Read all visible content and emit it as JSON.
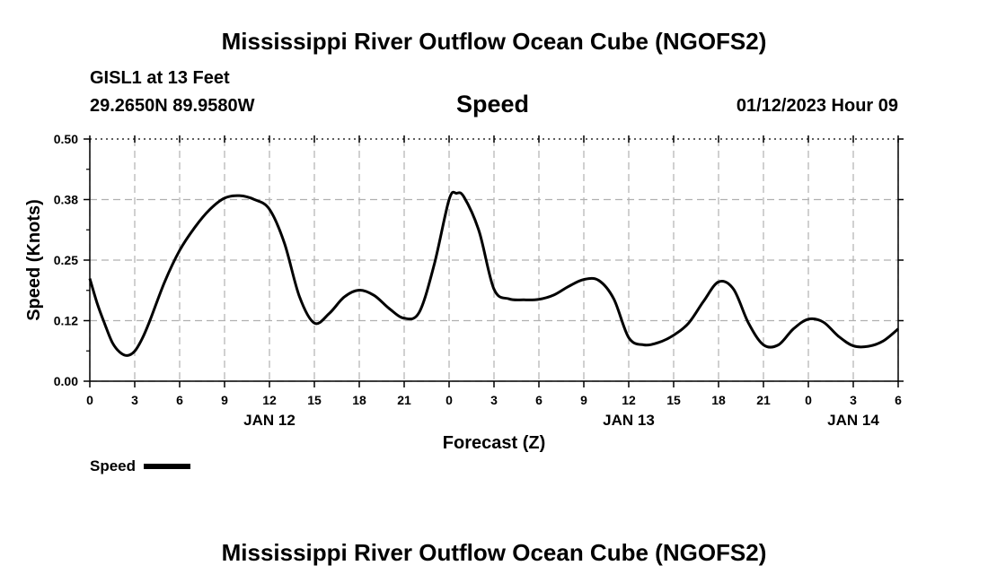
{
  "page": {
    "title_top": "Mississippi River Outflow Ocean Cube (NGOFS2)",
    "title_bottom": "Mississippi River Outflow Ocean Cube (NGOFS2)",
    "station": "GISL1 at 13 Feet",
    "coords": "29.2650N  89.9580W",
    "timestamp": "01/12/2023 Hour 09"
  },
  "legend": {
    "label": "Speed"
  },
  "chart_data": {
    "type": "line",
    "title": "Speed",
    "xlabel": "Forecast (Z)",
    "ylabel": "Speed (Knots)",
    "xlim": [
      0,
      54
    ],
    "ylim": [
      0,
      0.5
    ],
    "grid": true,
    "y_ticks": [
      0.0,
      0.125,
      0.25,
      0.375,
      0.5
    ],
    "y_tick_labels": [
      "0.00",
      "0.12",
      "0.25",
      "0.38",
      "0.50"
    ],
    "x_ticks": [
      0,
      3,
      6,
      9,
      12,
      15,
      18,
      21,
      24,
      27,
      30,
      33,
      36,
      39,
      42,
      45,
      48,
      51,
      54
    ],
    "x_tick_labels": [
      "0",
      "3",
      "6",
      "9",
      "12",
      "15",
      "18",
      "21",
      "0",
      "3",
      "6",
      "9",
      "12",
      "15",
      "18",
      "21",
      "0",
      "3",
      "6"
    ],
    "date_labels": [
      {
        "x": 12,
        "label": "JAN 12"
      },
      {
        "x": 36,
        "label": "JAN 13"
      },
      {
        "x": 51,
        "label": "JAN 14"
      }
    ],
    "series": [
      {
        "name": "Speed",
        "color": "#000000",
        "x": [
          0,
          0.5,
          1,
          1.5,
          2,
          2.5,
          3,
          3.5,
          4,
          5,
          6,
          7,
          8,
          9,
          10,
          11,
          12,
          13,
          14,
          15,
          16,
          17,
          18,
          19,
          20,
          21,
          22,
          23,
          24,
          24.5,
          25,
          26,
          27,
          28,
          29,
          30,
          31,
          32,
          33,
          34,
          35,
          36,
          37,
          38,
          39,
          40,
          41,
          42,
          43,
          44,
          45,
          46,
          47,
          48,
          49,
          50,
          51,
          52,
          53,
          54
        ],
        "values": [
          0.212,
          0.16,
          0.118,
          0.08,
          0.06,
          0.053,
          0.062,
          0.088,
          0.124,
          0.205,
          0.27,
          0.317,
          0.354,
          0.378,
          0.383,
          0.375,
          0.355,
          0.285,
          0.175,
          0.12,
          0.14,
          0.174,
          0.188,
          0.177,
          0.15,
          0.13,
          0.142,
          0.24,
          0.375,
          0.388,
          0.38,
          0.31,
          0.19,
          0.17,
          0.168,
          0.169,
          0.178,
          0.196,
          0.21,
          0.208,
          0.17,
          0.09,
          0.075,
          0.08,
          0.095,
          0.12,
          0.165,
          0.205,
          0.19,
          0.12,
          0.075,
          0.075,
          0.108,
          0.128,
          0.122,
          0.093,
          0.073,
          0.072,
          0.083,
          0.108
        ]
      }
    ]
  }
}
